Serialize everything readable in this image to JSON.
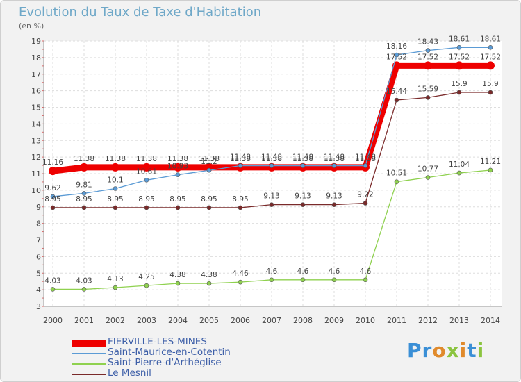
{
  "title": "Evolution du Taux de Taxe d'Habitation",
  "subtitle": "(en %)",
  "logo_text": "Proxiti",
  "chart_data": {
    "type": "line",
    "title": "Evolution du Taux de Taxe d'Habitation",
    "ylabel": "(en %)",
    "ylim": [
      3,
      19
    ],
    "yticks": [
      3,
      4,
      5,
      6,
      7,
      8,
      9,
      10,
      11,
      12,
      13,
      14,
      15,
      16,
      17,
      18,
      19
    ],
    "grid": true,
    "legend_position": "bottom-left",
    "x": [
      "2000",
      "2001",
      "2002",
      "2003",
      "2004",
      "2005",
      "2006",
      "2007",
      "2008",
      "2009",
      "2010",
      "2011",
      "2012",
      "2013",
      "2014"
    ],
    "series": [
      {
        "name": "FIERVILLE-LES-MINES",
        "color": "#ee0000",
        "values": [
          11.16,
          11.38,
          11.38,
          11.38,
          11.38,
          11.38,
          11.38,
          11.38,
          11.38,
          11.38,
          11.38,
          17.52,
          17.52,
          17.52,
          17.52
        ],
        "labels": [
          "11.16",
          "11.38",
          "11.38",
          "11.38",
          "11.38",
          "11.38",
          "11.38",
          "11.38",
          "11.38",
          "11.38",
          "11.38",
          "17.52",
          "17.52",
          "17.52",
          "17.52"
        ]
      },
      {
        "name": "Saint-Maurice-en-Cotentin",
        "color": "#5b9bd5",
        "values": [
          9.62,
          9.81,
          10.1,
          10.61,
          10.93,
          11.2,
          11.48,
          11.48,
          11.48,
          11.48,
          11.48,
          18.16,
          18.43,
          18.61,
          18.61
        ],
        "labels": [
          "9.62",
          "9.81",
          "10.1",
          "10.61",
          "10.93",
          "11.2",
          "11.48",
          "11.48",
          "11.48",
          "11.48",
          "11.48",
          "18.16",
          "18.43",
          "18.61",
          "18.61"
        ]
      },
      {
        "name": "Saint-Pierre-d'Arthéglise",
        "color": "#8fd14f",
        "values": [
          4.03,
          4.03,
          4.13,
          4.25,
          4.38,
          4.38,
          4.46,
          4.6,
          4.6,
          4.6,
          4.6,
          10.51,
          10.77,
          11.04,
          11.21
        ],
        "labels": [
          "4.03",
          "4.03",
          "4.13",
          "4.25",
          "4.38",
          "4.38",
          "4.46",
          "4.6",
          "4.6",
          "4.6",
          "4.6",
          "10.51",
          "10.77",
          "11.04",
          "11.21"
        ]
      },
      {
        "name": "Le Mesnil",
        "color": "#7a2a2a",
        "values": [
          8.95,
          8.95,
          8.95,
          8.95,
          8.95,
          8.95,
          8.95,
          9.13,
          9.13,
          9.13,
          9.22,
          15.44,
          15.59,
          15.9,
          15.9
        ],
        "labels": [
          "8.95",
          "8.95",
          "8.95",
          "8.95",
          "8.95",
          "8.95",
          "8.95",
          "9.13",
          "9.13",
          "9.13",
          "9.22",
          "15.44",
          "15.59",
          "15.9",
          "15.9"
        ]
      }
    ]
  }
}
